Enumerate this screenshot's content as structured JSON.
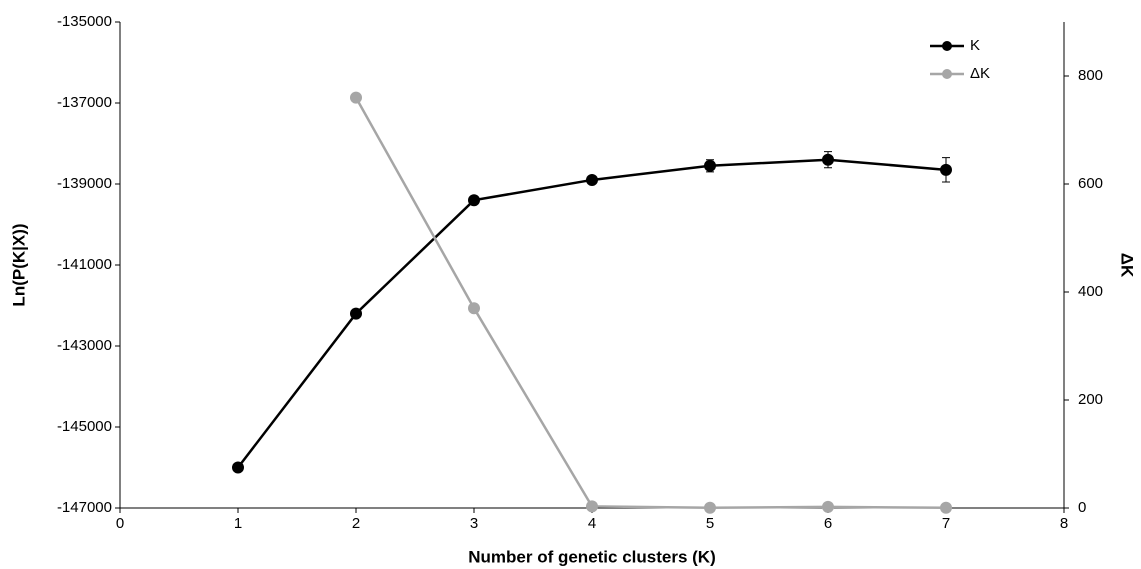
{
  "chart_data": {
    "type": "line",
    "x_label": "Number of genetic clusters (K)",
    "y_label": "Ln(P(K|X))",
    "y2_label": "ΔK",
    "x": [
      1,
      2,
      3,
      4,
      5,
      6,
      7
    ],
    "xlim": [
      0,
      8
    ],
    "xticks": [
      0,
      1,
      2,
      3,
      4,
      5,
      6,
      7,
      8
    ],
    "ylim": [
      -147000,
      -135000
    ],
    "yticks": [
      -147000,
      -145000,
      -143000,
      -141000,
      -139000,
      -137000,
      -135000
    ],
    "y2lim": [
      0,
      900
    ],
    "y2ticks": [
      0,
      200,
      400,
      600,
      800
    ],
    "legend": "upper right",
    "series": [
      {
        "name": "K",
        "color": "#000000",
        "values": [
          -146000,
          -142200,
          -139400,
          -138900,
          -138550,
          -138400,
          -138650
        ],
        "errors": [
          null,
          null,
          null,
          null,
          150,
          200,
          300
        ]
      },
      {
        "name": "ΔK",
        "color": "#a6a6a6",
        "axis": "y2",
        "values": [
          null,
          760,
          370,
          3,
          0.5,
          2,
          0.5
        ]
      }
    ]
  }
}
